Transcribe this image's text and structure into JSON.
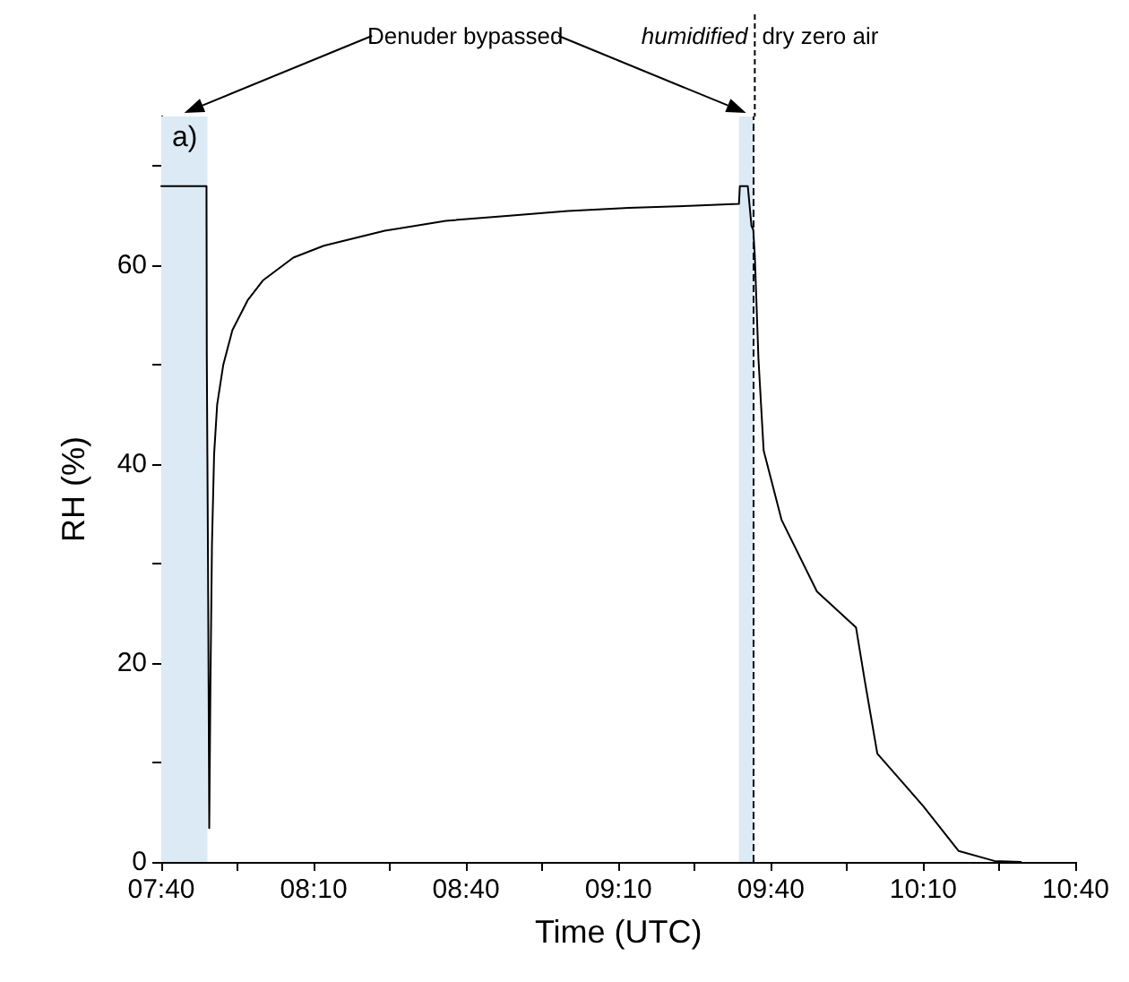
{
  "chart_data": {
    "type": "line",
    "xlabel": "Time (UTC)",
    "ylabel": "RH (%)",
    "xlim": [
      7.6667,
      10.6667
    ],
    "xticks": [
      {
        "value": 7.6667,
        "label": "07:40"
      },
      {
        "value": 7.9167,
        "label": null
      },
      {
        "value": 8.1667,
        "label": "08:10"
      },
      {
        "value": 8.4167,
        "label": null
      },
      {
        "value": 8.6667,
        "label": "08:40"
      },
      {
        "value": 8.9167,
        "label": null
      },
      {
        "value": 9.1667,
        "label": "09:10"
      },
      {
        "value": 9.4167,
        "label": null
      },
      {
        "value": 9.6667,
        "label": "09:40"
      },
      {
        "value": 9.9167,
        "label": null
      },
      {
        "value": 10.1667,
        "label": "10:10"
      },
      {
        "value": 10.4167,
        "label": null
      },
      {
        "value": 10.6667,
        "label": "10:40"
      }
    ],
    "ylim": [
      0,
      75
    ],
    "yticks": [
      0,
      {
        "value": 10,
        "label": null
      },
      20,
      {
        "value": 30,
        "label": null
      },
      40,
      {
        "value": 50,
        "label": null
      },
      60,
      {
        "value": 70,
        "label": null
      }
    ],
    "series": [
      {
        "color": "#000000",
        "x": [
          7.6667,
          7.815,
          7.816,
          7.82,
          7.824,
          7.828,
          7.833,
          7.84,
          7.85,
          7.87,
          7.9,
          7.95,
          8.0,
          8.1,
          8.2,
          8.4,
          8.6,
          8.8,
          9.0,
          9.2,
          9.4,
          9.562,
          9.565,
          9.574,
          9.591,
          9.603,
          9.609,
          9.614,
          9.626,
          9.643,
          9.702,
          9.818,
          9.946,
          9.975,
          10.016,
          10.167,
          10.283,
          10.4,
          10.487
        ],
        "values": [
          68,
          68,
          51,
          30,
          3.4,
          18,
          32,
          41,
          46,
          50,
          53.5,
          56.5,
          58.5,
          60.8,
          62,
          63.5,
          64.5,
          65,
          65.5,
          65.8,
          66,
          66.2,
          68,
          68,
          68,
          64,
          63.6,
          61,
          50.6,
          41.4,
          34.4,
          27.2,
          23.6,
          18.2,
          10.9,
          5.6,
          1.1,
          0.1,
          0
        ]
      }
    ],
    "bands": [
      {
        "axis": "x",
        "from": 7.6667,
        "to": 7.818,
        "color": "#dbeaf5"
      },
      {
        "axis": "x",
        "from": 9.562,
        "to": 9.609,
        "color": "#dbeaf5"
      }
    ],
    "ref_lines": [
      {
        "axis": "x",
        "value": 9.614,
        "line_style": "dashed",
        "color": "#000000"
      }
    ],
    "annotations": [
      "a)",
      "Denuder bypassed",
      "humidified",
      "dry zero air"
    ],
    "grid": false,
    "line_style": "solid",
    "marker": "none"
  }
}
